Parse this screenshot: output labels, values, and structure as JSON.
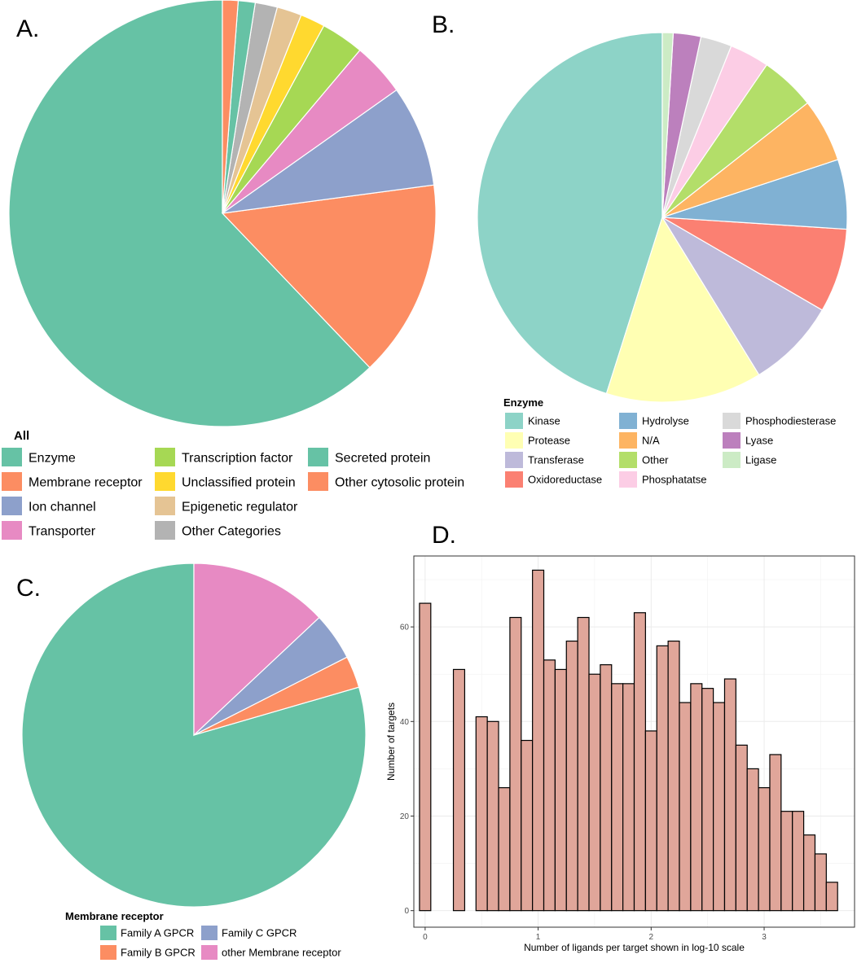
{
  "chart_data": [
    {
      "id": "A",
      "type": "pie",
      "panel_label": "A.",
      "legend_title": "All",
      "slices": [
        {
          "label": "Enzyme",
          "value": 63.0,
          "color": "#66c2a5"
        },
        {
          "label": "Membrane receptor",
          "value": 15.2,
          "color": "#fc8d62"
        },
        {
          "label": "Ion channel",
          "value": 7.8,
          "color": "#8da0cb"
        },
        {
          "label": "Transporter",
          "value": 4.1,
          "color": "#e78ac3"
        },
        {
          "label": "Transcription factor",
          "value": 3.3,
          "color": "#a6d854"
        },
        {
          "label": "Unclassified protein",
          "value": 1.9,
          "color": "#ffd92f"
        },
        {
          "label": "Epigenetic regulator",
          "value": 1.9,
          "color": "#e5c494"
        },
        {
          "label": "Other Categories",
          "value": 1.7,
          "color": "#b3b3b3"
        },
        {
          "label": "Secreted protein",
          "value": 1.3,
          "color": "#66c2a5"
        },
        {
          "label": "Other cytosolic protein",
          "value": 1.2,
          "color": "#fc8d62"
        }
      ]
    },
    {
      "id": "B",
      "type": "pie",
      "panel_label": "B.",
      "legend_title": "Enzyme",
      "slices": [
        {
          "label": "Kinase",
          "value": 43.0,
          "color": "#8dd3c7"
        },
        {
          "label": "Protease",
          "value": 13.0,
          "color": "#ffffb3"
        },
        {
          "label": "Transferase",
          "value": 7.5,
          "color": "#bebada"
        },
        {
          "label": "Oxidoreductase",
          "value": 7.0,
          "color": "#fb8072"
        },
        {
          "label": "Hydrolyse",
          "value": 5.8,
          "color": "#80b1d3"
        },
        {
          "label": "N/A",
          "value": 5.3,
          "color": "#fdb462"
        },
        {
          "label": "Other",
          "value": 4.6,
          "color": "#b3de69"
        },
        {
          "label": "Phosphatatse",
          "value": 3.3,
          "color": "#fccde5"
        },
        {
          "label": "Phosphodiesterase",
          "value": 2.6,
          "color": "#d9d9d9"
        },
        {
          "label": "Lyase",
          "value": 2.3,
          "color": "#bc80bd"
        },
        {
          "label": "Ligase",
          "value": 0.9,
          "color": "#ccebc5"
        }
      ]
    },
    {
      "id": "C",
      "type": "pie",
      "panel_label": "C.",
      "legend_title": "Membrane receptor",
      "slices": [
        {
          "label": "Family A GPCR",
          "value": 79.5,
          "color": "#66c2a5"
        },
        {
          "label": "Family B GPCR",
          "value": 3.0,
          "color": "#fc8d62"
        },
        {
          "label": "Family C GPCR",
          "value": 4.5,
          "color": "#8da0cb"
        },
        {
          "label": "other Membrane receptor",
          "value": 13.0,
          "color": "#e78ac3"
        }
      ]
    },
    {
      "id": "D",
      "type": "bar",
      "panel_label": "D.",
      "xlabel": "Number of ligands per target shown in log-10 scale",
      "ylabel": "Number of targets",
      "xlim": [
        -0.1,
        3.8
      ],
      "ylim": [
        -3.5,
        75
      ],
      "bin_width": 0.1,
      "bar_color": "#e0a69a",
      "x_ticks": [
        "0",
        "1",
        "2",
        "3"
      ],
      "y_ticks": [
        "0",
        "20",
        "40",
        "60"
      ],
      "bins": [
        {
          "x": 0.0,
          "count": 65
        },
        {
          "x": 0.1,
          "count": 0
        },
        {
          "x": 0.2,
          "count": 0
        },
        {
          "x": 0.3,
          "count": 51
        },
        {
          "x": 0.4,
          "count": 0
        },
        {
          "x": 0.5,
          "count": 41
        },
        {
          "x": 0.6,
          "count": 40
        },
        {
          "x": 0.7,
          "count": 26
        },
        {
          "x": 0.8,
          "count": 62
        },
        {
          "x": 0.9,
          "count": 36
        },
        {
          "x": 1.0,
          "count": 72
        },
        {
          "x": 1.1,
          "count": 53
        },
        {
          "x": 1.2,
          "count": 51
        },
        {
          "x": 1.3,
          "count": 57
        },
        {
          "x": 1.4,
          "count": 62
        },
        {
          "x": 1.5,
          "count": 50
        },
        {
          "x": 1.6,
          "count": 52
        },
        {
          "x": 1.7,
          "count": 48
        },
        {
          "x": 1.8,
          "count": 48
        },
        {
          "x": 1.9,
          "count": 63
        },
        {
          "x": 2.0,
          "count": 38
        },
        {
          "x": 2.1,
          "count": 56
        },
        {
          "x": 2.2,
          "count": 57
        },
        {
          "x": 2.3,
          "count": 44
        },
        {
          "x": 2.4,
          "count": 48
        },
        {
          "x": 2.5,
          "count": 47
        },
        {
          "x": 2.6,
          "count": 44
        },
        {
          "x": 2.7,
          "count": 49
        },
        {
          "x": 2.8,
          "count": 35
        },
        {
          "x": 2.9,
          "count": 30
        },
        {
          "x": 3.0,
          "count": 26
        },
        {
          "x": 3.1,
          "count": 33
        },
        {
          "x": 3.2,
          "count": 21
        },
        {
          "x": 3.3,
          "count": 21
        },
        {
          "x": 3.4,
          "count": 16
        },
        {
          "x": 3.5,
          "count": 12
        },
        {
          "x": 3.6,
          "count": 6
        }
      ]
    }
  ]
}
